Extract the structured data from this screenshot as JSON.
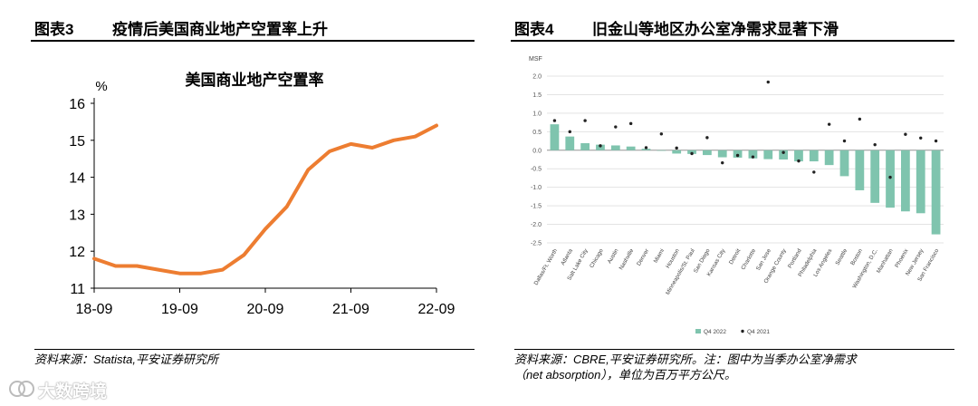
{
  "left": {
    "fig_num": "图表3",
    "fig_title": "疫情后美国商业地产空置率上升",
    "source": "资料来源：Statista,平安证券研究所"
  },
  "right": {
    "fig_num": "图表4",
    "fig_title": "旧金山等地区办公室净需求显著下滑",
    "source_line1": "资料来源：CBRE,平安证券研究所。注：图中为当季办公室净需求",
    "source_line2": "（net absorption），单位为百万平方公尺。"
  },
  "watermark": "大数跨境",
  "chart_data": [
    {
      "type": "line",
      "title": "美国商业地产空置率",
      "ylabel": "%",
      "xlabel": "",
      "ylim": [
        11,
        16
      ],
      "yticks": [
        11,
        12,
        13,
        14,
        15,
        16
      ],
      "xticks": [
        {
          "label": "18-09",
          "x": 0
        },
        {
          "label": "19-09",
          "x": 4
        },
        {
          "label": "20-09",
          "x": 8
        },
        {
          "label": "21-09",
          "x": 12
        },
        {
          "label": "22-09",
          "x": 16
        }
      ],
      "series": [
        {
          "color": "#ED7D31",
          "x": [
            0,
            1,
            2,
            3,
            4,
            5,
            6,
            7,
            8,
            9,
            10,
            11,
            12,
            13,
            14,
            15,
            16
          ],
          "values": [
            11.8,
            11.6,
            11.6,
            11.5,
            11.4,
            11.4,
            11.5,
            11.9,
            12.6,
            13.2,
            14.2,
            14.7,
            14.9,
            14.8,
            15.0,
            15.1,
            15.4
          ]
        }
      ],
      "grid": false
    },
    {
      "type": "bar",
      "ylabel": "MSF",
      "ylim": [
        -2.5,
        2.0
      ],
      "yticks": [
        -2.5,
        -2.0,
        -1.5,
        -1.0,
        -0.5,
        0.0,
        0.5,
        1.0,
        1.5,
        2.0
      ],
      "ytick_labels": [
        "-2.5",
        "-2.0",
        "-1.5",
        "-1.0",
        "-0.5",
        "0.0",
        "0.5",
        "1.0",
        "1.5",
        "2.0"
      ],
      "categories": [
        "Dallas/Ft. Worth",
        "Atlanta",
        "Salt Lake City",
        "Chicago",
        "Austin",
        "Nashville",
        "Denver",
        "Miami",
        "Houston",
        "Minneapolis/St. Paul",
        "San Diego",
        "Kansas City",
        "Detroit",
        "Charlotte",
        "San Jose",
        "Orange County",
        "Portland",
        "Philadelphia",
        "Los Angeles",
        "Seattle",
        "Boston",
        "Washington, D.C.",
        "Manhattan",
        "Phoenix",
        "New Jersey",
        "San Francisco"
      ],
      "series": [
        {
          "name": "Q4 2022",
          "style": "bar",
          "color": "#7FC4AE",
          "values": [
            0.7,
            0.37,
            0.19,
            0.15,
            0.13,
            0.1,
            0.04,
            0.0,
            -0.09,
            -0.1,
            -0.13,
            -0.19,
            -0.2,
            -0.22,
            -0.24,
            -0.25,
            -0.3,
            -0.3,
            -0.4,
            -0.7,
            -1.08,
            -1.42,
            -1.55,
            -1.65,
            -1.7,
            -2.27
          ]
        },
        {
          "name": "Q4 2021",
          "style": "dot",
          "color": "#222222",
          "values": [
            0.8,
            0.5,
            0.8,
            0.12,
            0.63,
            0.72,
            0.07,
            0.44,
            0.06,
            -0.09,
            0.34,
            -0.34,
            -0.14,
            -0.18,
            1.84,
            -0.06,
            -0.29,
            -0.59,
            0.7,
            0.25,
            0.84,
            0.15,
            -0.73,
            0.43,
            0.33,
            0.25
          ]
        }
      ],
      "legend": "bottom-center",
      "grid": true
    }
  ]
}
